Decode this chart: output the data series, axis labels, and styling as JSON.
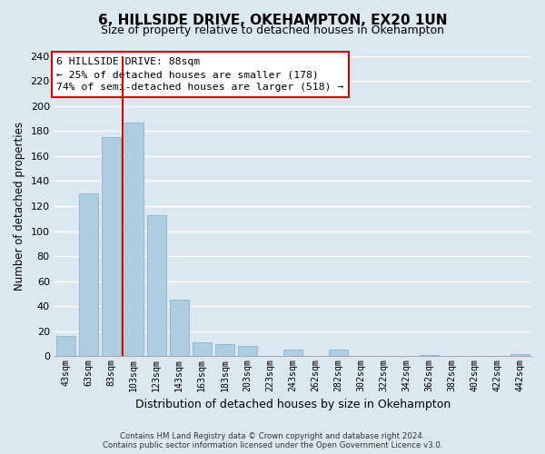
{
  "title": "6, HILLSIDE DRIVE, OKEHAMPTON, EX20 1UN",
  "subtitle": "Size of property relative to detached houses in Okehampton",
  "xlabel": "Distribution of detached houses by size in Okehampton",
  "ylabel": "Number of detached properties",
  "bar_labels": [
    "43sqm",
    "63sqm",
    "83sqm",
    "103sqm",
    "123sqm",
    "143sqm",
    "163sqm",
    "183sqm",
    "203sqm",
    "223sqm",
    "243sqm",
    "262sqm",
    "282sqm",
    "302sqm",
    "322sqm",
    "342sqm",
    "362sqm",
    "382sqm",
    "402sqm",
    "422sqm",
    "442sqm"
  ],
  "bar_values": [
    16,
    130,
    175,
    187,
    113,
    45,
    11,
    10,
    8,
    0,
    5,
    0,
    5,
    0,
    0,
    0,
    1,
    0,
    0,
    0,
    2
  ],
  "bar_color": "#aecde1",
  "bar_edge_color": "#aecde1",
  "vline_color": "#cc0000",
  "vline_x": 2.5,
  "ylim": [
    0,
    240
  ],
  "yticks": [
    0,
    20,
    40,
    60,
    80,
    100,
    120,
    140,
    160,
    180,
    200,
    220,
    240
  ],
  "annotation_title": "6 HILLSIDE DRIVE: 88sqm",
  "annotation_line1": "← 25% of detached houses are smaller (178)",
  "annotation_line2": "74% of semi-detached houses are larger (518) →",
  "annotation_box_color": "#ffffff",
  "annotation_box_edge": "#cc0000",
  "footer_line1": "Contains HM Land Registry data © Crown copyright and database right 2024.",
  "footer_line2": "Contains public sector information licensed under the Open Government Licence v3.0.",
  "background_color": "#dce8f0",
  "grid_color": "#ffffff",
  "title_fontsize": 11,
  "subtitle_fontsize": 9
}
